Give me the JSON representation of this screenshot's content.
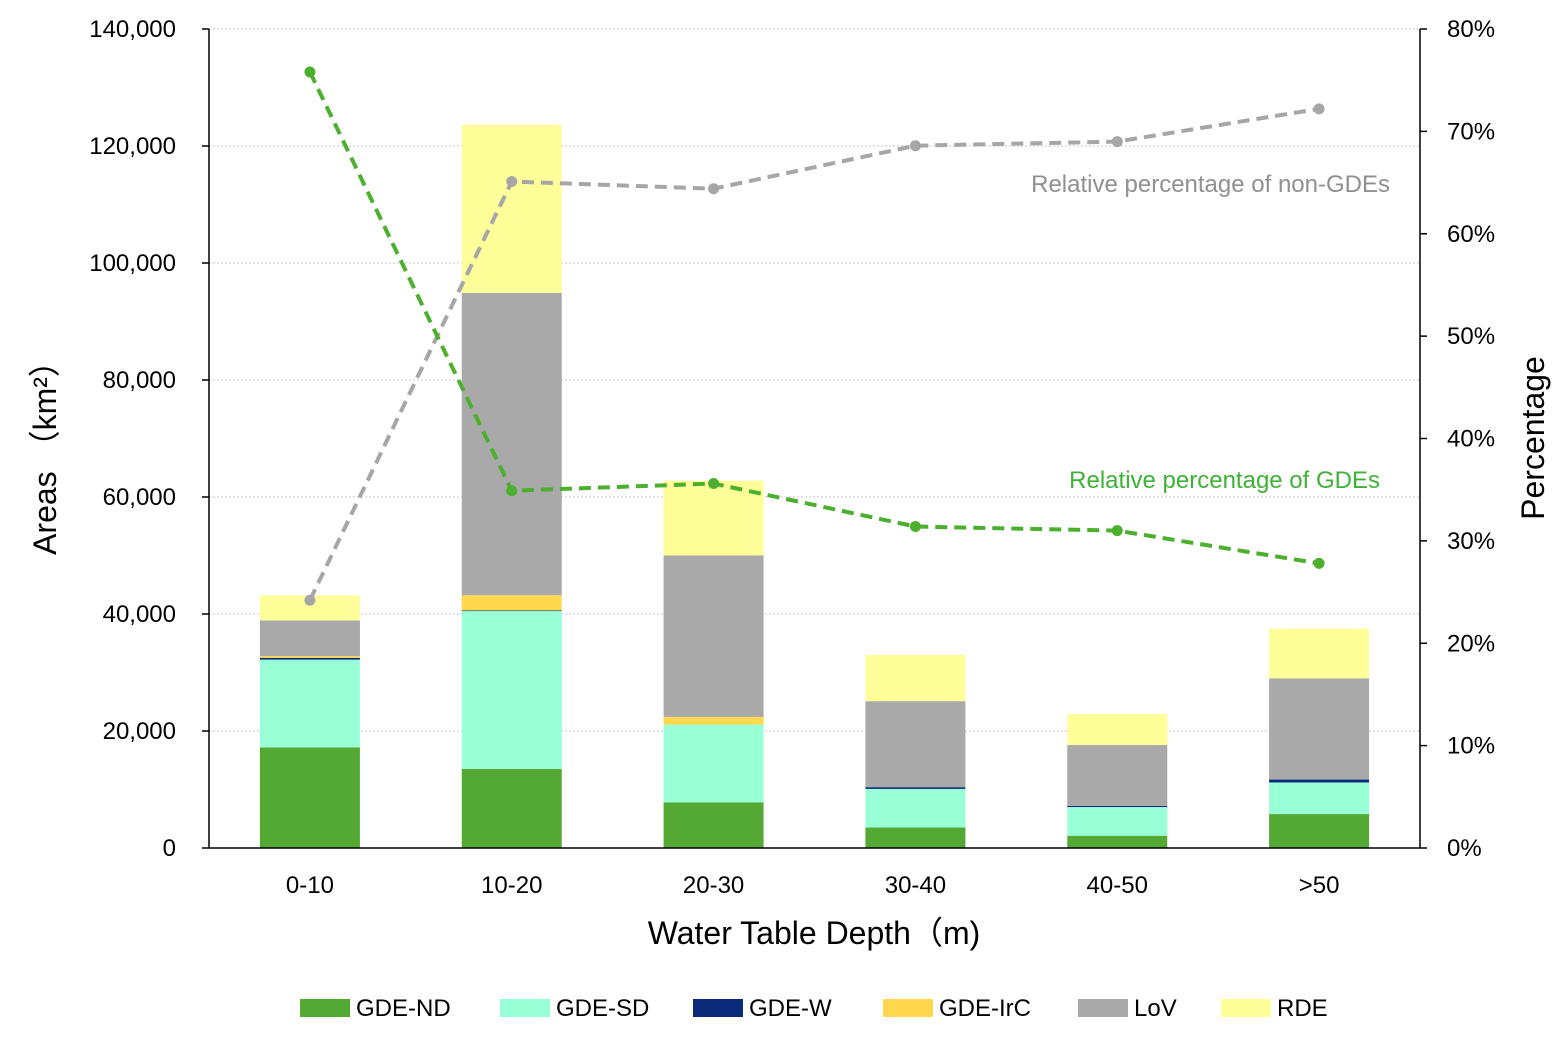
{
  "chart_data": {
    "type": "bar",
    "stacked": true,
    "categories": [
      "0-10",
      "10-20",
      "20-30",
      "30-40",
      "40-50",
      ">50"
    ],
    "xlabel": "Water Table Depth（m)",
    "ylabel": "Areas （km²）",
    "ylabel_right": "Percentage",
    "ylim": [
      0,
      140000
    ],
    "ylim_right": [
      0,
      80
    ],
    "y_ticks": [
      "0",
      "20,000",
      "40,000",
      "60,000",
      "80,000",
      "100,000",
      "120,000",
      "140,000"
    ],
    "y_ticks_right": [
      "0%",
      "10%",
      "20%",
      "30%",
      "40%",
      "50%",
      "60%",
      "70%",
      "80%"
    ],
    "grid": true,
    "legend_position": "bottom",
    "series": [
      {
        "name": "GDE-ND",
        "color": "#53a933",
        "values": [
          17200,
          13500,
          7800,
          3500,
          2100,
          5800
        ]
      },
      {
        "name": "GDE-SD",
        "color": "#99ffd6",
        "values": [
          15000,
          27000,
          13300,
          6600,
          4900,
          5400
        ]
      },
      {
        "name": "GDE-W",
        "color": "#0b2a7a",
        "values": [
          300,
          100,
          0,
          300,
          200,
          500
        ]
      },
      {
        "name": "GDE-IrC",
        "color": "#ffd84d",
        "values": [
          300,
          2600,
          1300,
          0,
          0,
          0
        ]
      },
      {
        "name": "LoV",
        "color": "#a9a9a9",
        "values": [
          6100,
          51700,
          27600,
          14700,
          10400,
          17300
        ]
      },
      {
        "name": "RDE",
        "color": "#ffff99",
        "values": [
          4300,
          28700,
          12800,
          7900,
          5300,
          8500
        ]
      }
    ],
    "lines": [
      {
        "name": "Relative percentage of non-GDEs",
        "color": "#a6a6a6",
        "axis": "right",
        "values": [
          24.2,
          65.1,
          64.4,
          68.6,
          69.0,
          72.2
        ]
      },
      {
        "name": "Relative percentage of GDEs",
        "color": "#4caf2e",
        "axis": "right",
        "values": [
          75.8,
          34.9,
          35.6,
          31.4,
          31.0,
          27.8
        ]
      }
    ]
  }
}
